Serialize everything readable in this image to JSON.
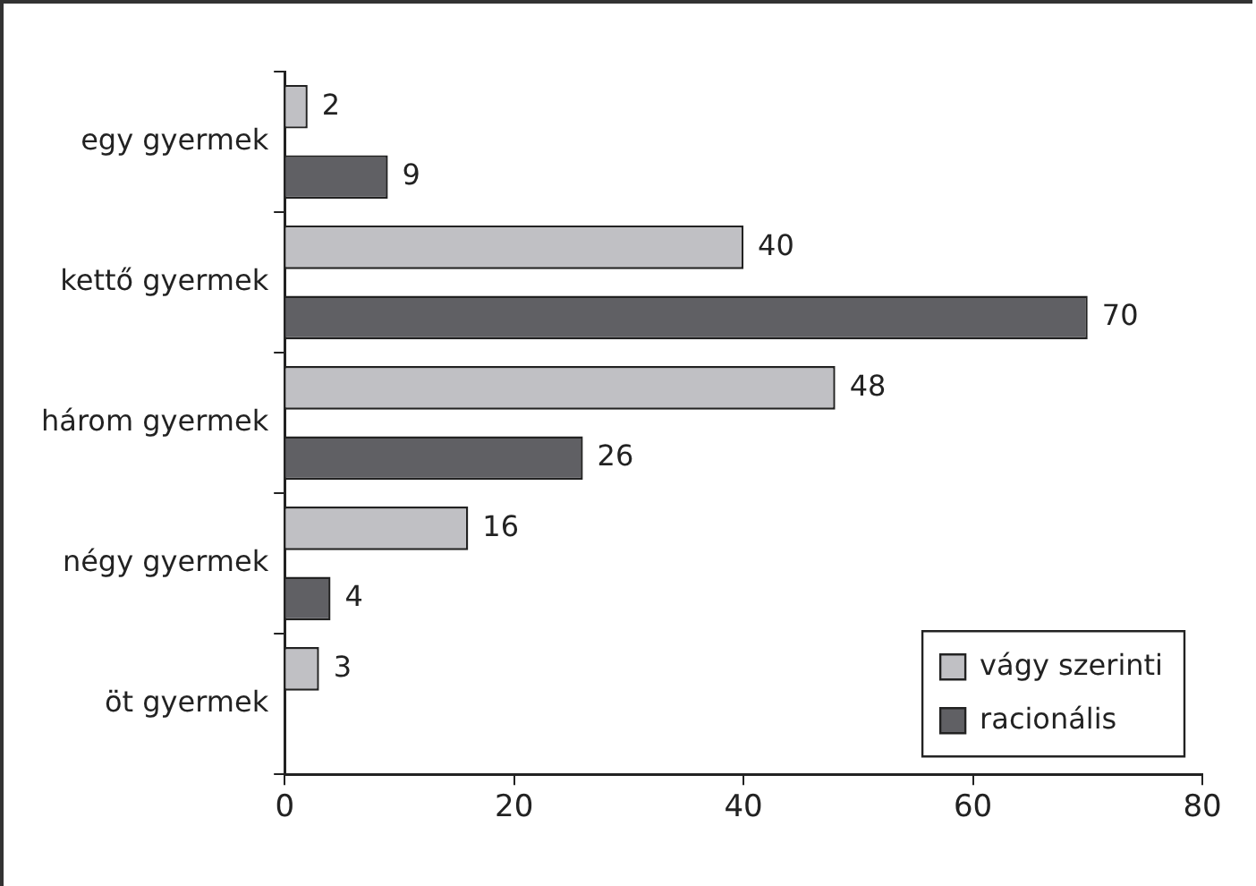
{
  "chart_data": {
    "type": "bar",
    "orientation": "horizontal",
    "categories": [
      "egy gyermek",
      "kettő gyermek",
      "három gyermek",
      "négy gyermek",
      "öt gyermek"
    ],
    "series": [
      {
        "name": "vágy szerinti",
        "color": "#c0c0c4",
        "values": [
          2,
          40,
          48,
          16,
          3
        ]
      },
      {
        "name": "racionális",
        "color": "#606064",
        "values": [
          9,
          70,
          26,
          4,
          null
        ]
      }
    ],
    "xlim": [
      0,
      80
    ],
    "xticks": [
      0,
      20,
      40,
      60,
      80
    ],
    "grid": false,
    "legend": "bottom right",
    "data_labels": true
  }
}
